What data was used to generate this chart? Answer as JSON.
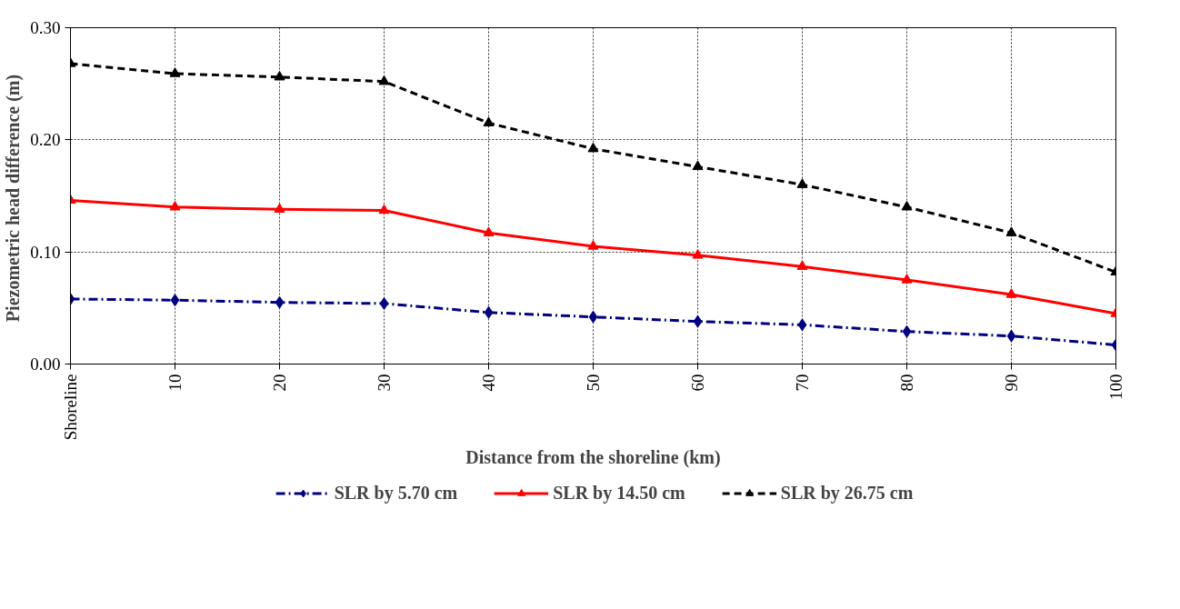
{
  "chart_data": {
    "type": "line",
    "xlabel": "Distance from the shoreline (km)",
    "ylabel": "Piezometric  head difference (m)",
    "categories": [
      "Shoreline",
      "10",
      "20",
      "30",
      "40",
      "50",
      "60",
      "70",
      "80",
      "90",
      "100"
    ],
    "ylim": [
      0,
      0.3
    ],
    "yticks": [
      {
        "value": 0,
        "label": "0.00"
      },
      {
        "value": 0.1,
        "label": "0.10"
      },
      {
        "value": 0.2,
        "label": "0.20"
      },
      {
        "value": 0.3,
        "label": "0.30"
      }
    ],
    "grid": true,
    "legend": "bottom",
    "series": [
      {
        "name": "SLR by 5.70 cm",
        "color": "#000080",
        "marker": "diamond",
        "line_style": "dashdot",
        "values": [
          0.058,
          0.057,
          0.055,
          0.054,
          0.046,
          0.042,
          0.038,
          0.035,
          0.029,
          0.025,
          0.017
        ]
      },
      {
        "name": "SLR by 14.50 cm",
        "color": "#ff0000",
        "marker": "triangle",
        "line_style": "solid",
        "values": [
          0.146,
          0.14,
          0.138,
          0.137,
          0.117,
          0.105,
          0.097,
          0.087,
          0.075,
          0.062,
          0.045
        ]
      },
      {
        "name": "SLR by 26.75 cm",
        "color": "#000000",
        "marker": "triangle",
        "line_style": "dashed",
        "values": [
          0.268,
          0.259,
          0.256,
          0.252,
          0.215,
          0.192,
          0.176,
          0.16,
          0.14,
          0.117,
          0.082
        ]
      }
    ]
  }
}
